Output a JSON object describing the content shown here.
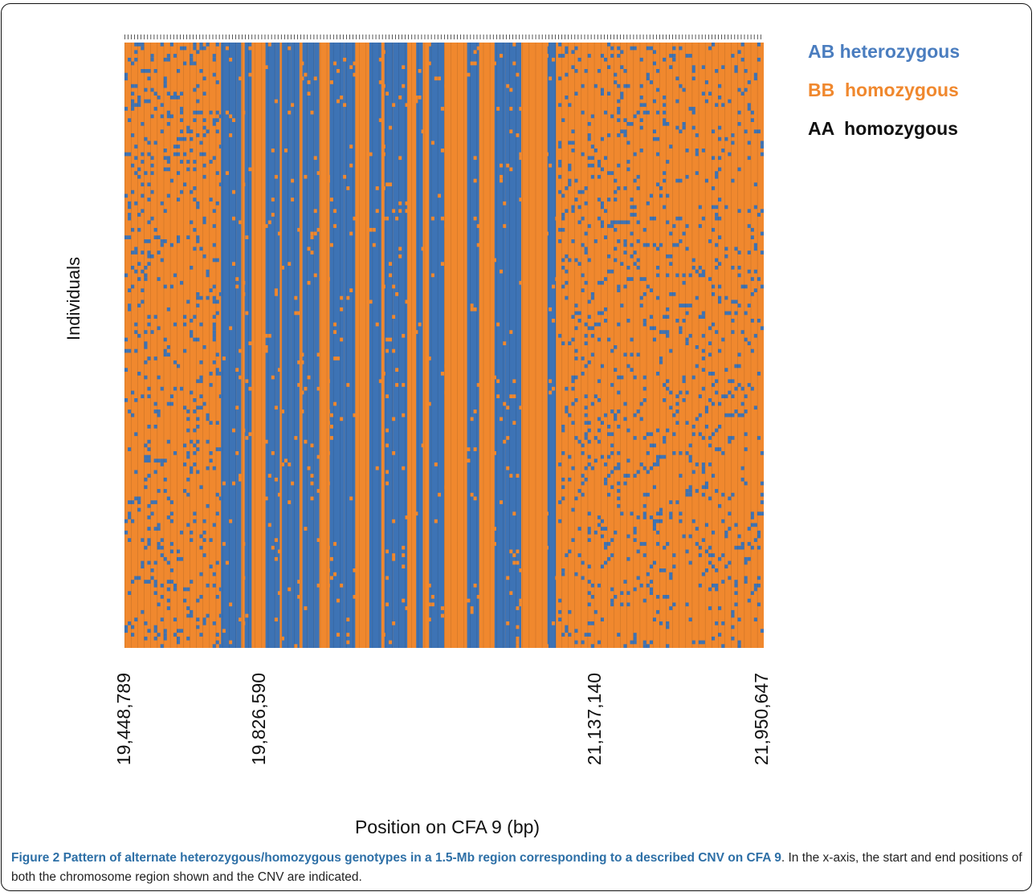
{
  "chart_data": {
    "type": "heatmap",
    "title": "",
    "xlabel": "Position on CFA 9 (bp)",
    "ylabel": "Individuals",
    "x_tick_labels": [
      "19,448,789",
      "19,826,590",
      "21,137,140",
      "21,950,647"
    ],
    "x_tick_values": [
      19448789,
      19826590,
      21137140,
      21950647
    ],
    "xlim": [
      19448789,
      21950647
    ],
    "cnv_region": [
      19826590,
      21137140
    ],
    "legend": [
      {
        "label": "AB heterozygous",
        "color": "#3d73b5"
      },
      {
        "label": "BB  homozygous",
        "color": "#f0882e"
      },
      {
        "label": "AA  homozygous",
        "color": "#111111"
      }
    ],
    "grid": false,
    "legend_placement": "top-right"
  },
  "caption": {
    "title": "Figure 2 Pattern of alternate heterozygous/homozygous genotypes in a 1.5-Mb region corresponding to a described CNV on CFA 9",
    "text": ". In the x-axis, the start and end positions of both the chromosome region shown and the CNV are indicated."
  }
}
